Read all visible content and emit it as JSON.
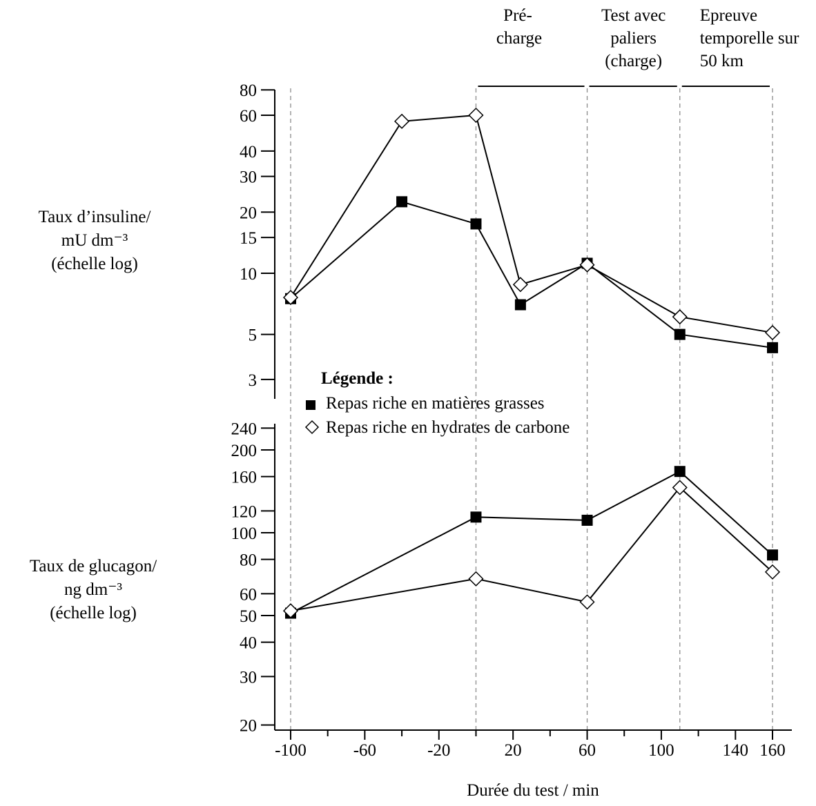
{
  "chart_data": {
    "type": "line",
    "xlabel": "Durée du test / min",
    "x_ticks": [
      -100,
      -60,
      -20,
      20,
      60,
      100,
      140,
      160
    ],
    "xlim": [
      -100,
      170
    ],
    "phases": [
      {
        "label_lines": [
          "Pré-",
          "charge"
        ],
        "start": 0,
        "end": 60
      },
      {
        "label_lines": [
          "Test avec",
          "paliers",
          "(charge)"
        ],
        "start": 60,
        "end": 110
      },
      {
        "label_lines": [
          "Epreuve",
          "temporelle sur",
          "50 km"
        ],
        "start": 110,
        "end": 160
      }
    ],
    "legend": {
      "title": "Légende :",
      "entries": [
        {
          "label": "Repas riche en matières grasses",
          "marker": "filled-square"
        },
        {
          "label": "Repas riche en hydrates de carbone",
          "marker": "open-diamond"
        }
      ]
    },
    "panels": [
      {
        "id": "insulin",
        "ylabel_lines": [
          "Taux d’insuline/",
          "mU dm⁻³",
          "(échelle log)"
        ],
        "yscale": "log",
        "ylim": [
          3,
          80
        ],
        "y_ticks": [
          3,
          5,
          10,
          15,
          20,
          30,
          40,
          60,
          80
        ],
        "series": [
          {
            "marker": "filled-square",
            "points": [
              [
                -100,
                7.5
              ],
              [
                -40,
                22.5
              ],
              [
                0,
                17.5
              ],
              [
                24,
                7.0
              ],
              [
                60,
                11.2
              ],
              [
                110,
                5.0
              ],
              [
                160,
                4.3
              ]
            ]
          },
          {
            "marker": "open-diamond",
            "points": [
              [
                -100,
                7.6
              ],
              [
                -40,
                56
              ],
              [
                0,
                60
              ],
              [
                24,
                8.8
              ],
              [
                60,
                11.0
              ],
              [
                110,
                6.1
              ],
              [
                160,
                5.1
              ]
            ]
          }
        ]
      },
      {
        "id": "glucagon",
        "ylabel_lines": [
          "Taux de glucagon/",
          "ng dm⁻³",
          "(échelle log)"
        ],
        "yscale": "log",
        "ylim": [
          20,
          240
        ],
        "y_ticks": [
          20,
          30,
          40,
          50,
          60,
          80,
          100,
          120,
          160,
          200,
          240
        ],
        "series": [
          {
            "marker": "filled-square",
            "points": [
              [
                -100,
                51
              ],
              [
                0,
                114
              ],
              [
                60,
                111
              ],
              [
                110,
                167
              ],
              [
                160,
                83
              ]
            ]
          },
          {
            "marker": "open-diamond",
            "points": [
              [
                -100,
                52
              ],
              [
                0,
                68
              ],
              [
                60,
                56
              ],
              [
                110,
                146
              ],
              [
                160,
                72
              ]
            ]
          }
        ]
      }
    ]
  }
}
